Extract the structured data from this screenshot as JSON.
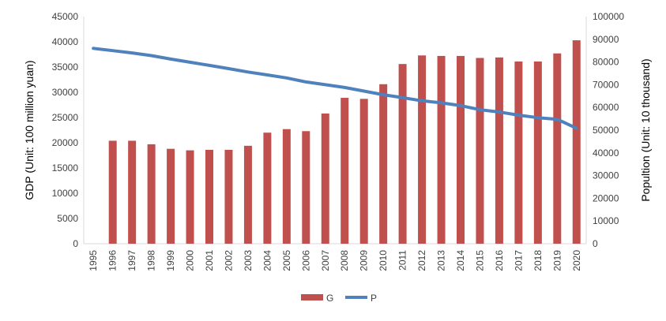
{
  "chart_data": {
    "type": "bar",
    "categories": [
      "1995",
      "1996",
      "1997",
      "1998",
      "1999",
      "2000",
      "2001",
      "2002",
      "2003",
      "2004",
      "2005",
      "2006",
      "2007",
      "2008",
      "2009",
      "2010",
      "2011",
      "2012",
      "2013",
      "2014",
      "2015",
      "2016",
      "2017",
      "2018",
      "2019",
      "2020"
    ],
    "series": [
      {
        "name": "G",
        "type": "bar",
        "axis": "left",
        "color": "#C0504D",
        "values": [
          null,
          20400,
          20400,
          19700,
          18800,
          18500,
          18600,
          18600,
          19400,
          22000,
          22700,
          22300,
          25800,
          28900,
          28700,
          31600,
          35600,
          37300,
          37200,
          37200,
          36800,
          36900,
          36100,
          36100,
          37700,
          40300
        ]
      },
      {
        "name": "P",
        "type": "line",
        "axis": "right",
        "color": "#4F81BD",
        "values": [
          86000,
          85000,
          84000,
          82800,
          81300,
          79900,
          78500,
          77100,
          75600,
          74300,
          73000,
          71200,
          70000,
          68800,
          67200,
          65600,
          64300,
          62900,
          62000,
          60800,
          59000,
          58000,
          56600,
          55500,
          54800,
          50800
        ]
      }
    ],
    "y_left": {
      "label": "GDP (Unit: 100 million yuan)",
      "range": [
        0,
        45000
      ],
      "ticks": [
        "0",
        "5000",
        "10000",
        "15000",
        "20000",
        "25000",
        "30000",
        "35000",
        "40000",
        "45000"
      ]
    },
    "y_right": {
      "label": "Popultion (Unit: 10 thousand)",
      "range": [
        0,
        100000
      ],
      "ticks": [
        "0",
        "10000",
        "20000",
        "30000",
        "40000",
        "50000",
        "60000",
        "70000",
        "80000",
        "90000",
        "100000"
      ]
    },
    "grid": false,
    "legend": "bottom-center"
  }
}
